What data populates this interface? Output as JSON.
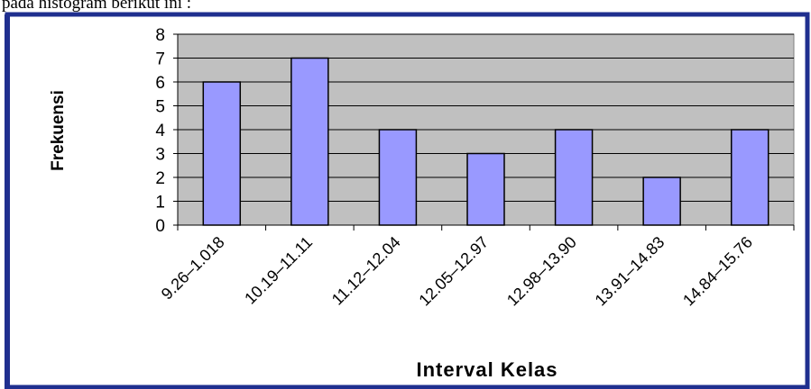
{
  "caption": "pada histogram berikut ini :",
  "chart_data": {
    "type": "bar",
    "xlabel": "Interval Kelas",
    "ylabel": "Frekuensi",
    "categories": [
      "9.26–1.018",
      "10.19–11.11",
      "11.12–12.04",
      "12.05–12.97",
      "12.98–13.90",
      "13.91–14.83",
      "14.84–15.76"
    ],
    "values": [
      6,
      7,
      4,
      3,
      4,
      2,
      4
    ],
    "color": "#9999ff",
    "background": "#c0c0c0",
    "ylim": [
      0,
      8
    ],
    "yticks": [
      0,
      1,
      2,
      3,
      4,
      5,
      6,
      7,
      8
    ],
    "grid": true
  }
}
